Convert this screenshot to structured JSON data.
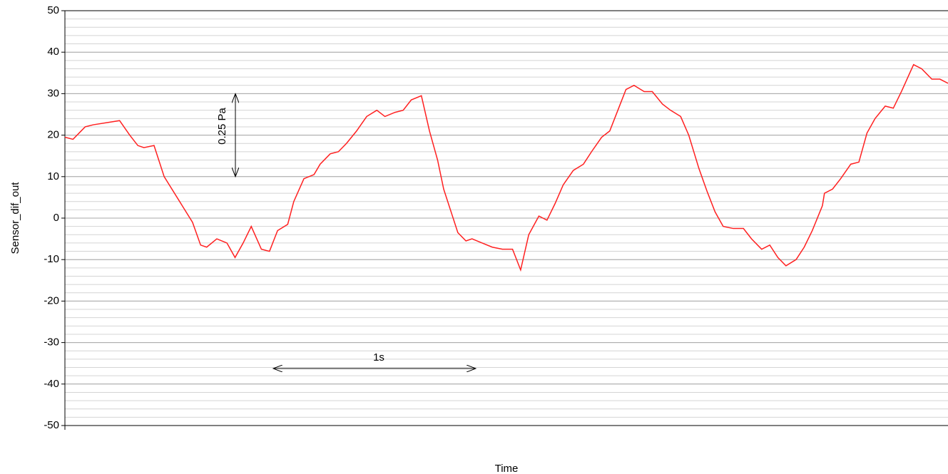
{
  "chart_data": {
    "type": "line",
    "y_label": "Sensor_dif_out",
    "x_label": "Time",
    "annotations": [
      {
        "text": "0.25 Pa"
      },
      {
        "text": "1s"
      }
    ],
    "x": [
      0,
      0.04,
      0.1,
      0.14,
      0.27,
      0.32,
      0.36,
      0.39,
      0.44,
      0.49,
      0.63,
      0.67,
      0.7,
      0.75,
      0.8,
      0.84,
      0.88,
      0.92,
      0.97,
      1.01,
      1.05,
      1.1,
      1.13,
      1.18,
      1.23,
      1.26,
      1.31,
      1.35,
      1.39,
      1.44,
      1.49,
      1.54,
      1.58,
      1.63,
      1.67,
      1.71,
      1.76,
      1.8,
      1.84,
      1.87,
      1.91,
      1.94,
      1.98,
      2.01,
      2.06,
      2.11,
      2.16,
      2.21,
      2.25,
      2.29,
      2.34,
      2.38,
      2.42,
      2.46,
      2.51,
      2.56,
      2.6,
      2.65,
      2.69,
      2.73,
      2.77,
      2.81,
      2.86,
      2.9,
      2.95,
      2.99,
      3.04,
      3.08,
      3.13,
      3.17,
      3.21,
      3.25,
      3.3,
      3.35,
      3.39,
      3.44,
      3.48,
      3.52,
      3.56,
      3.61,
      3.65,
      3.69,
      3.74,
      3.75,
      3.79,
      3.83,
      3.88,
      3.92,
      3.96,
      4.0,
      4.05,
      4.09,
      4.13,
      4.19,
      4.23,
      4.28,
      4.32,
      4.36
    ],
    "series": [
      {
        "color": "#ff2020",
        "values": [
          19.5,
          19,
          22,
          22.5,
          23.5,
          20,
          17.5,
          17,
          17.5,
          10,
          -1,
          -6.5,
          -7,
          -5,
          -6,
          -9.5,
          -6,
          -2,
          -7.5,
          -8,
          -3,
          -1.5,
          4,
          9.5,
          10.5,
          13,
          15.5,
          16,
          18,
          21,
          24.5,
          26,
          24.5,
          25.5,
          26,
          28.5,
          29.5,
          21,
          14,
          7,
          1,
          -3.5,
          -5.5,
          -5,
          -6,
          -7,
          -7.5,
          -7.5,
          -12.5,
          -4,
          0.5,
          -0.5,
          3.5,
          8,
          11.5,
          13,
          16,
          19.5,
          21,
          26,
          31,
          32,
          30.5,
          30.5,
          27.5,
          26,
          24.5,
          20,
          12,
          6.5,
          1.5,
          -2,
          -2.5,
          -2.5,
          -5,
          -7.5,
          -6.5,
          -9.5,
          -11.5,
          -10,
          -7,
          -3,
          3,
          6,
          7,
          9.5,
          13,
          13.5,
          20.5,
          24,
          27,
          26.5,
          30.5,
          37,
          36,
          33.5,
          33.5,
          32.5
        ]
      }
    ],
    "xlim": [
      0,
      4.36
    ],
    "ylim": [
      -50,
      50
    ],
    "yticks": [
      -50,
      -40,
      -30,
      -20,
      -10,
      0,
      10,
      20,
      30,
      40,
      50
    ],
    "minor_grid": 2,
    "grid": true
  }
}
